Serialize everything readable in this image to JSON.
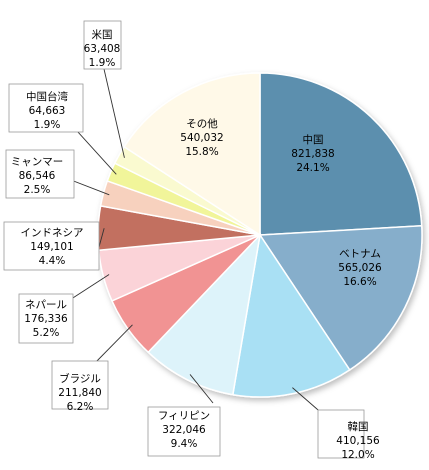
{
  "chart_data": {
    "type": "pie",
    "title": "",
    "start": "12 o'clock, clockwise",
    "slices": [
      {
        "name": "中国",
        "value_text": "821,838",
        "pct_text": "24.1%",
        "value": 821838,
        "pct": 24.1,
        "color": "#5B8FAE"
      },
      {
        "name": "ベトナム",
        "value_text": "565,026",
        "pct_text": "16.6%",
        "value": 565026,
        "pct": 16.6,
        "color": "#86AECB"
      },
      {
        "name": "韓国",
        "value_text": "410,156",
        "pct_text": "12.0%",
        "value": 410156,
        "pct": 12.0,
        "color": "#A9E0F4"
      },
      {
        "name": "フィリピン",
        "value_text": "322,046",
        "pct_text": "9.4%",
        "value": 322046,
        "pct": 9.4,
        "color": "#DDF3FA"
      },
      {
        "name": "ブラジル",
        "value_text": "211,840",
        "pct_text": "6.2%",
        "value": 211840,
        "pct": 6.2,
        "color": "#F19393"
      },
      {
        "name": "ネパール",
        "value_text": "176,336",
        "pct_text": "5.2%",
        "value": 176336,
        "pct": 5.2,
        "color": "#FBD3D8"
      },
      {
        "name": "インドネシア",
        "value_text": "149,101",
        "pct_text": "4.4%",
        "value": 149101,
        "pct": 4.4,
        "color": "#C26F60"
      },
      {
        "name": "ミャンマー",
        "value_text": "86,546",
        "pct_text": "2.5%",
        "value": 86546,
        "pct": 2.5,
        "color": "#F7D1BE"
      },
      {
        "name": "中国台湾",
        "value_text": "64,663",
        "pct_text": "1.9%",
        "value": 64663,
        "pct": 1.9,
        "color": "#F1F59A"
      },
      {
        "name": "米国",
        "value_text": "63,408",
        "pct_text": "1.9%",
        "value": 63408,
        "pct": 1.9,
        "color": "#FAFAD0"
      },
      {
        "name": "その他",
        "value_text": "540,032",
        "pct_text": "15.8%",
        "value": 540032,
        "pct": 15.8,
        "color": "#FFF9E8"
      }
    ]
  }
}
